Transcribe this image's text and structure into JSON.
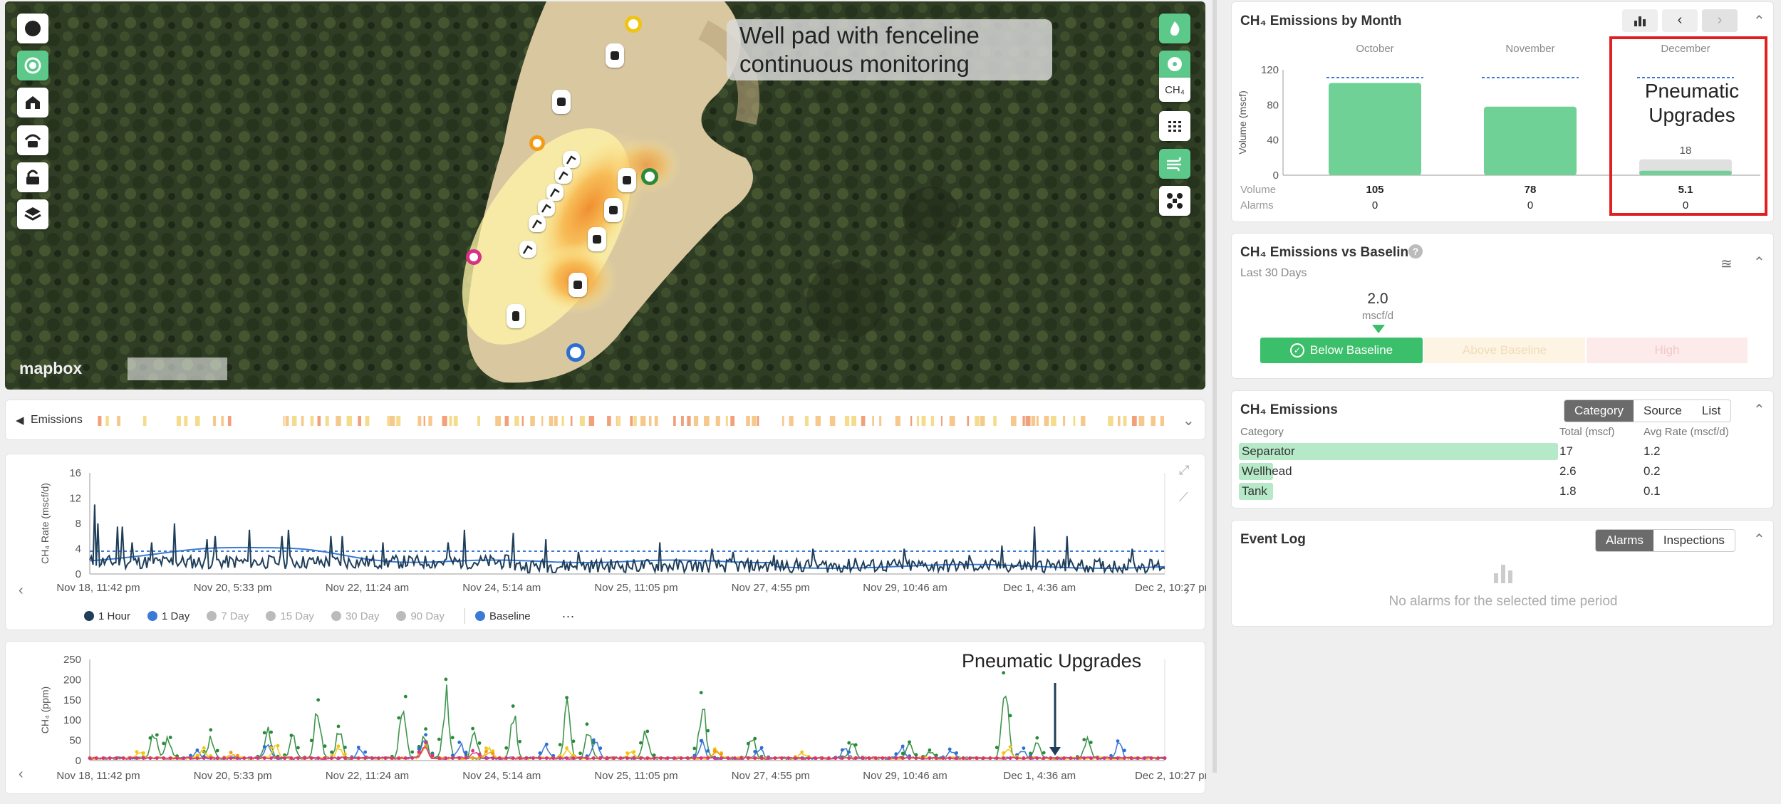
{
  "map": {
    "callout": "Well pad with fenceline continuous monitoring",
    "logo": "mapbox",
    "right_label_ch4": "CH₄",
    "left_tools": [
      "compass-icon",
      "sensor-icon",
      "facility-icon",
      "gateway-icon",
      "lock-icon",
      "layers-icon"
    ],
    "right_tools": [
      "flame-icon",
      "fan-icon",
      "grid-icon",
      "wind-icon",
      "drone-icon"
    ]
  },
  "emissions_strip": {
    "label": "Emissions"
  },
  "rate_chart": {
    "ylabel": "CH₄ Rate (mscf/d)",
    "yticks": [
      "16",
      "12",
      "8",
      "4",
      "0"
    ],
    "xticks": [
      "Nov 18, 11:42 pm",
      "Nov 20, 5:33 pm",
      "Nov 22, 11:24 am",
      "Nov 24, 5:14 am",
      "Nov 25, 11:05 pm",
      "Nov 27, 4:55 pm",
      "Nov 29, 10:46 am",
      "Dec 1, 4:36 am",
      "Dec 2, 10:27 pm"
    ],
    "legend": [
      {
        "label": "1 Hour",
        "color": "#1f3e5a",
        "active": true
      },
      {
        "label": "1 Day",
        "color": "#3a7bd5",
        "active": true
      },
      {
        "label": "7 Day",
        "color": "#bbbbbb",
        "active": false
      },
      {
        "label": "15 Day",
        "color": "#bbbbbb",
        "active": false
      },
      {
        "label": "30 Day",
        "color": "#bbbbbb",
        "active": false
      },
      {
        "label": "90 Day",
        "color": "#bbbbbb",
        "active": false
      },
      {
        "label": "Baseline",
        "color": "#3a7bd5",
        "active": true
      }
    ],
    "more": "···"
  },
  "ppm_chart": {
    "ylabel": "CH₄ (ppm)",
    "yticks": [
      "250",
      "200",
      "150",
      "100",
      "50",
      "0"
    ],
    "annotation": "Pneumatic Upgrades"
  },
  "by_month": {
    "title": "CH₄ Emissions by Month",
    "ylabel": "Volume (mscf)",
    "yticks": [
      "120",
      "80",
      "40",
      "0"
    ],
    "months": [
      "October",
      "November",
      "December"
    ],
    "volume_label": "Volume",
    "alarms_label": "Alarms",
    "volumes": [
      "105",
      "78",
      "5.1"
    ],
    "alarms": [
      "0",
      "0",
      "0"
    ],
    "annotation": "Pneumatic Upgrades",
    "dec_projection": "18"
  },
  "chart_data": [
    {
      "type": "bar",
      "title": "CH₄ Emissions by Month",
      "ylabel": "Volume (mscf)",
      "categories": [
        "October",
        "November",
        "December"
      ],
      "values": [
        105,
        78,
        5.1
      ],
      "ylim": [
        0,
        120
      ]
    }
  ],
  "baseline": {
    "title": "CH₄ Emissions vs Baseline",
    "subtitle": "Last 30 Days",
    "value": "2.0",
    "unit": "mscf/d",
    "below": "Below Baseline",
    "above": "Above Baseline",
    "high": "High"
  },
  "emissions": {
    "title": "CH₄ Emissions",
    "tabs": [
      "Category",
      "Source",
      "List"
    ],
    "headers": [
      "Category",
      "Total (mscf)",
      "Avg Rate (mscf/d)"
    ],
    "rows": [
      {
        "cat": "Separator",
        "total": "17",
        "rate": "1.2"
      },
      {
        "cat": "Wellhead",
        "total": "2.6",
        "rate": "0.2"
      },
      {
        "cat": "Tank",
        "total": "1.8",
        "rate": "0.1"
      }
    ]
  },
  "event_log": {
    "title": "Event Log",
    "tabs": [
      "Alarms",
      "Inspections"
    ],
    "empty": "No alarms for the selected time period"
  }
}
